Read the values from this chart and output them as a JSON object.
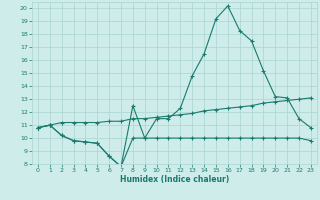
{
  "x": [
    0,
    1,
    2,
    3,
    4,
    5,
    6,
    7,
    8,
    9,
    10,
    11,
    12,
    13,
    14,
    15,
    16,
    17,
    18,
    19,
    20,
    21,
    22,
    23
  ],
  "line1": [
    10.8,
    11.0,
    10.2,
    9.8,
    9.7,
    9.6,
    8.6,
    7.8,
    12.5,
    10.0,
    11.5,
    11.5,
    12.3,
    14.8,
    16.5,
    19.2,
    20.2,
    18.3,
    17.5,
    15.2,
    13.2,
    13.1,
    11.5,
    10.8
  ],
  "line2": [
    10.8,
    11.0,
    10.2,
    9.8,
    9.7,
    9.6,
    8.6,
    7.8,
    10.0,
    10.0,
    10.0,
    10.0,
    10.0,
    10.0,
    10.0,
    10.0,
    10.0,
    10.0,
    10.0,
    10.0,
    10.0,
    10.0,
    10.0,
    9.8
  ],
  "line3": [
    10.8,
    11.0,
    11.2,
    11.2,
    11.2,
    11.2,
    11.3,
    11.3,
    11.5,
    11.5,
    11.6,
    11.7,
    11.8,
    11.9,
    12.1,
    12.2,
    12.3,
    12.4,
    12.5,
    12.7,
    12.8,
    12.9,
    13.0,
    13.1
  ],
  "bg_color": "#ceecea",
  "grid_color": "#aad4d0",
  "line_color": "#1a7a6e",
  "xlabel": "Humidex (Indice chaleur)",
  "ylim": [
    8,
    20.5
  ],
  "xlim": [
    -0.5,
    23.5
  ],
  "yticks": [
    8,
    9,
    10,
    11,
    12,
    13,
    14,
    15,
    16,
    17,
    18,
    19,
    20
  ],
  "xticks": [
    0,
    1,
    2,
    3,
    4,
    5,
    6,
    7,
    8,
    9,
    10,
    11,
    12,
    13,
    14,
    15,
    16,
    17,
    18,
    19,
    20,
    21,
    22,
    23
  ]
}
